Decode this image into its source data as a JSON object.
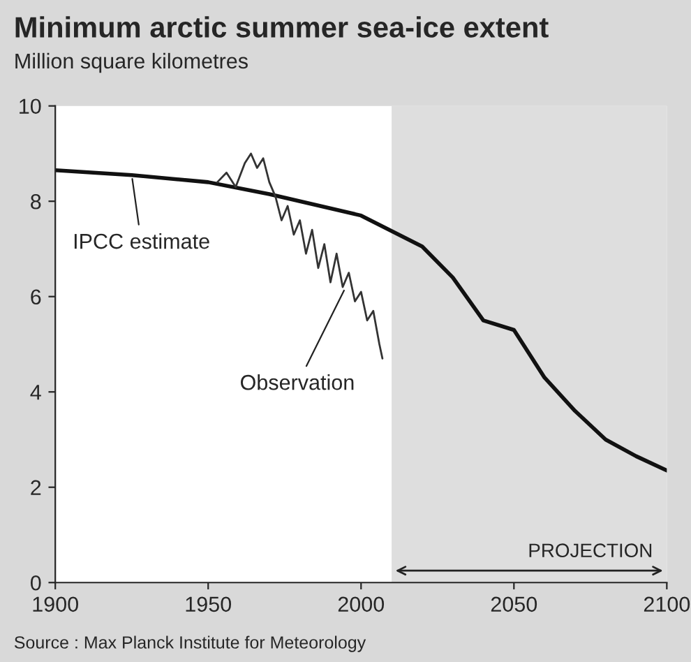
{
  "chart_data": {
    "type": "line",
    "title": "Minimum arctic summer sea-ice extent",
    "subtitle": "Million square kilometres",
    "xlim": [
      1900,
      2100
    ],
    "xticks": [
      1900,
      1950,
      2000,
      2050,
      2100
    ],
    "ylim": [
      0,
      10
    ],
    "yticks": [
      0,
      2,
      4,
      6,
      8,
      10
    ],
    "series": [
      {
        "color": "#111111",
        "x": [
          1900,
          1925,
          1950,
          1970,
          2000,
          2020,
          2030,
          2040,
          2050,
          2060,
          2070,
          2080,
          2090,
          2100
        ],
        "values": [
          8.65,
          8.55,
          8.4,
          8.15,
          7.7,
          7.05,
          6.4,
          5.5,
          5.3,
          4.3,
          3.6,
          3.0,
          2.65,
          2.35
        ]
      },
      {
        "color": "#333333",
        "x": [
          1953,
          1956,
          1959,
          1962,
          1964,
          1966,
          1968,
          1970,
          1972,
          1974,
          1976,
          1978,
          1980,
          1982,
          1984,
          1986,
          1988,
          1990,
          1992,
          1994,
          1996,
          1998,
          2000,
          2002,
          2004,
          2006,
          2007
        ],
        "values": [
          8.4,
          8.6,
          8.3,
          8.8,
          9.0,
          8.7,
          8.9,
          8.4,
          8.1,
          7.6,
          7.9,
          7.3,
          7.6,
          6.9,
          7.4,
          6.6,
          7.1,
          6.3,
          6.9,
          6.2,
          6.5,
          5.9,
          6.1,
          5.5,
          5.7,
          5.0,
          4.7
        ]
      }
    ],
    "bands": [
      {
        "axis": "x",
        "from": 2010,
        "to": 2100,
        "label": "PROJECTION",
        "color": "#c8c8c8"
      }
    ],
    "annotations": [
      {
        "text": "IPCC estimate",
        "x": 1925,
        "y": 8.55
      },
      {
        "text": "Observation",
        "x": 1995,
        "y": 6.2
      },
      "Source : Max Planck Institute for Meteorology"
    ],
    "line_style": "solid",
    "marker": "none",
    "grid": false,
    "legend": false
  }
}
